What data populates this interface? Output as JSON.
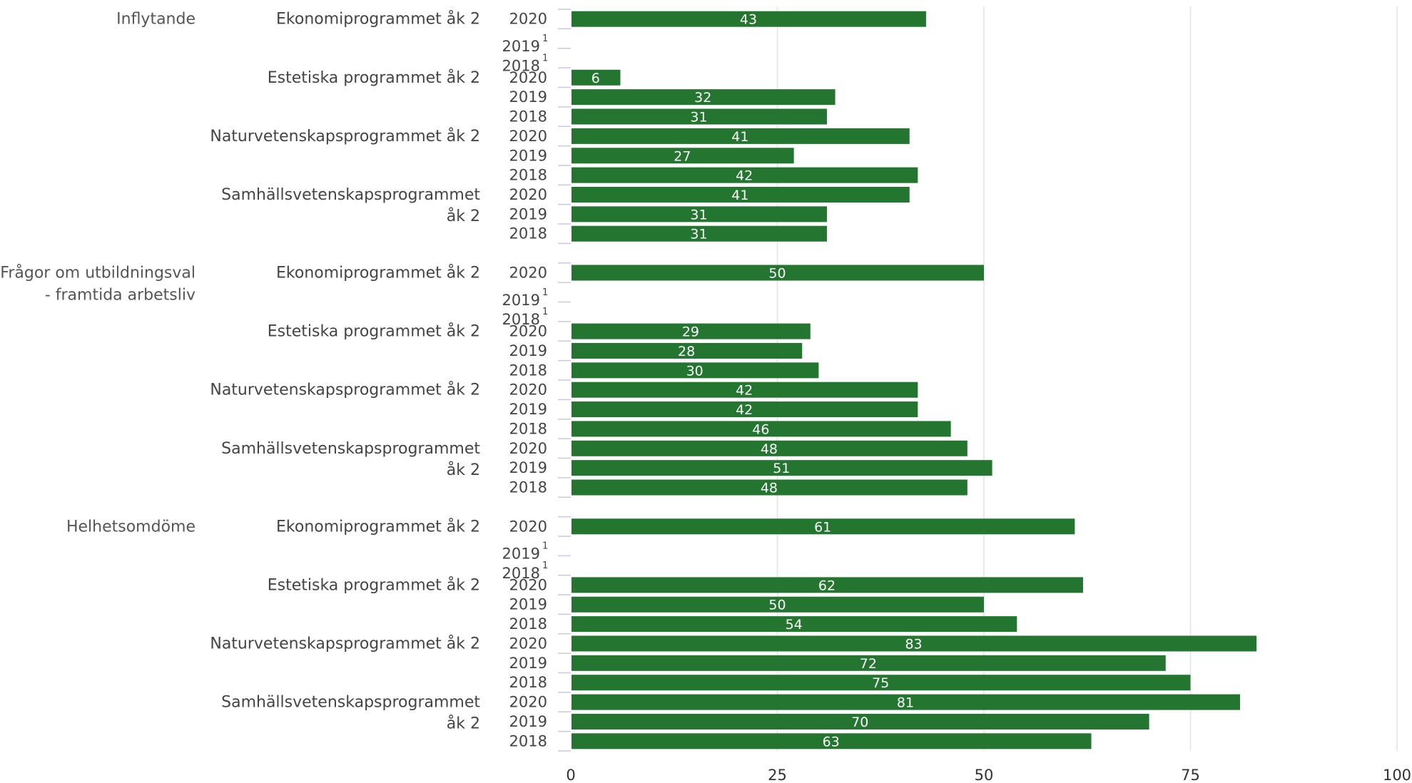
{
  "chart_data": {
    "type": "bar",
    "orientation": "horizontal",
    "title": "",
    "xlabel": "",
    "ylabel": "",
    "xlim": [
      0,
      100
    ],
    "x_ticks": [
      "0",
      "25",
      "50",
      "75",
      "100"
    ],
    "grid": true,
    "legend": "none",
    "bar_color": "#237530",
    "groups": [
      {
        "label": [
          "Inflytande"
        ],
        "programs": [
          {
            "label": [
              "Ekonomiprogrammet åk 2"
            ],
            "rows": [
              {
                "year": "2020",
                "value": 43
              },
              {
                "year": "2019",
                "value": null,
                "note": "1"
              },
              {
                "year": "2018",
                "value": null,
                "note": "1"
              }
            ]
          },
          {
            "label": [
              "Estetiska programmet åk 2"
            ],
            "rows": [
              {
                "year": "2020",
                "value": 6
              },
              {
                "year": "2019",
                "value": 32
              },
              {
                "year": "2018",
                "value": 31
              }
            ]
          },
          {
            "label": [
              "Naturvetenskapsprogrammet åk 2"
            ],
            "rows": [
              {
                "year": "2020",
                "value": 41
              },
              {
                "year": "2019",
                "value": 27
              },
              {
                "year": "2018",
                "value": 42
              }
            ]
          },
          {
            "label": [
              "Samhällsvetenskapsprogrammet",
              "åk 2"
            ],
            "rows": [
              {
                "year": "2020",
                "value": 41
              },
              {
                "year": "2019",
                "value": 31
              },
              {
                "year": "2018",
                "value": 31
              }
            ]
          }
        ]
      },
      {
        "label": [
          "Frågor om utbildningsval",
          "- framtida arbetsliv"
        ],
        "programs": [
          {
            "label": [
              "Ekonomiprogrammet åk 2"
            ],
            "rows": [
              {
                "year": "2020",
                "value": 50
              },
              {
                "year": "2019",
                "value": null,
                "note": "1"
              },
              {
                "year": "2018",
                "value": null,
                "note": "1"
              }
            ]
          },
          {
            "label": [
              "Estetiska programmet åk 2"
            ],
            "rows": [
              {
                "year": "2020",
                "value": 29
              },
              {
                "year": "2019",
                "value": 28
              },
              {
                "year": "2018",
                "value": 30
              }
            ]
          },
          {
            "label": [
              "Naturvetenskapsprogrammet åk 2"
            ],
            "rows": [
              {
                "year": "2020",
                "value": 42
              },
              {
                "year": "2019",
                "value": 42
              },
              {
                "year": "2018",
                "value": 46
              }
            ]
          },
          {
            "label": [
              "Samhällsvetenskapsprogrammet",
              "åk 2"
            ],
            "rows": [
              {
                "year": "2020",
                "value": 48
              },
              {
                "year": "2019",
                "value": 51
              },
              {
                "year": "2018",
                "value": 48
              }
            ]
          }
        ]
      },
      {
        "label": [
          "Helhetsomdöme"
        ],
        "programs": [
          {
            "label": [
              "Ekonomiprogrammet åk 2"
            ],
            "rows": [
              {
                "year": "2020",
                "value": 61
              },
              {
                "year": "2019",
                "value": null,
                "note": "1"
              },
              {
                "year": "2018",
                "value": null,
                "note": "1"
              }
            ]
          },
          {
            "label": [
              "Estetiska programmet åk 2"
            ],
            "rows": [
              {
                "year": "2020",
                "value": 62
              },
              {
                "year": "2019",
                "value": 50
              },
              {
                "year": "2018",
                "value": 54
              }
            ]
          },
          {
            "label": [
              "Naturvetenskapsprogrammet åk 2"
            ],
            "rows": [
              {
                "year": "2020",
                "value": 83
              },
              {
                "year": "2019",
                "value": 72
              },
              {
                "year": "2018",
                "value": 75
              }
            ]
          },
          {
            "label": [
              "Samhällsvetenskapsprogrammet",
              "åk 2"
            ],
            "rows": [
              {
                "year": "2020",
                "value": 81
              },
              {
                "year": "2019",
                "value": 70
              },
              {
                "year": "2018",
                "value": 63
              }
            ]
          }
        ]
      }
    ]
  }
}
